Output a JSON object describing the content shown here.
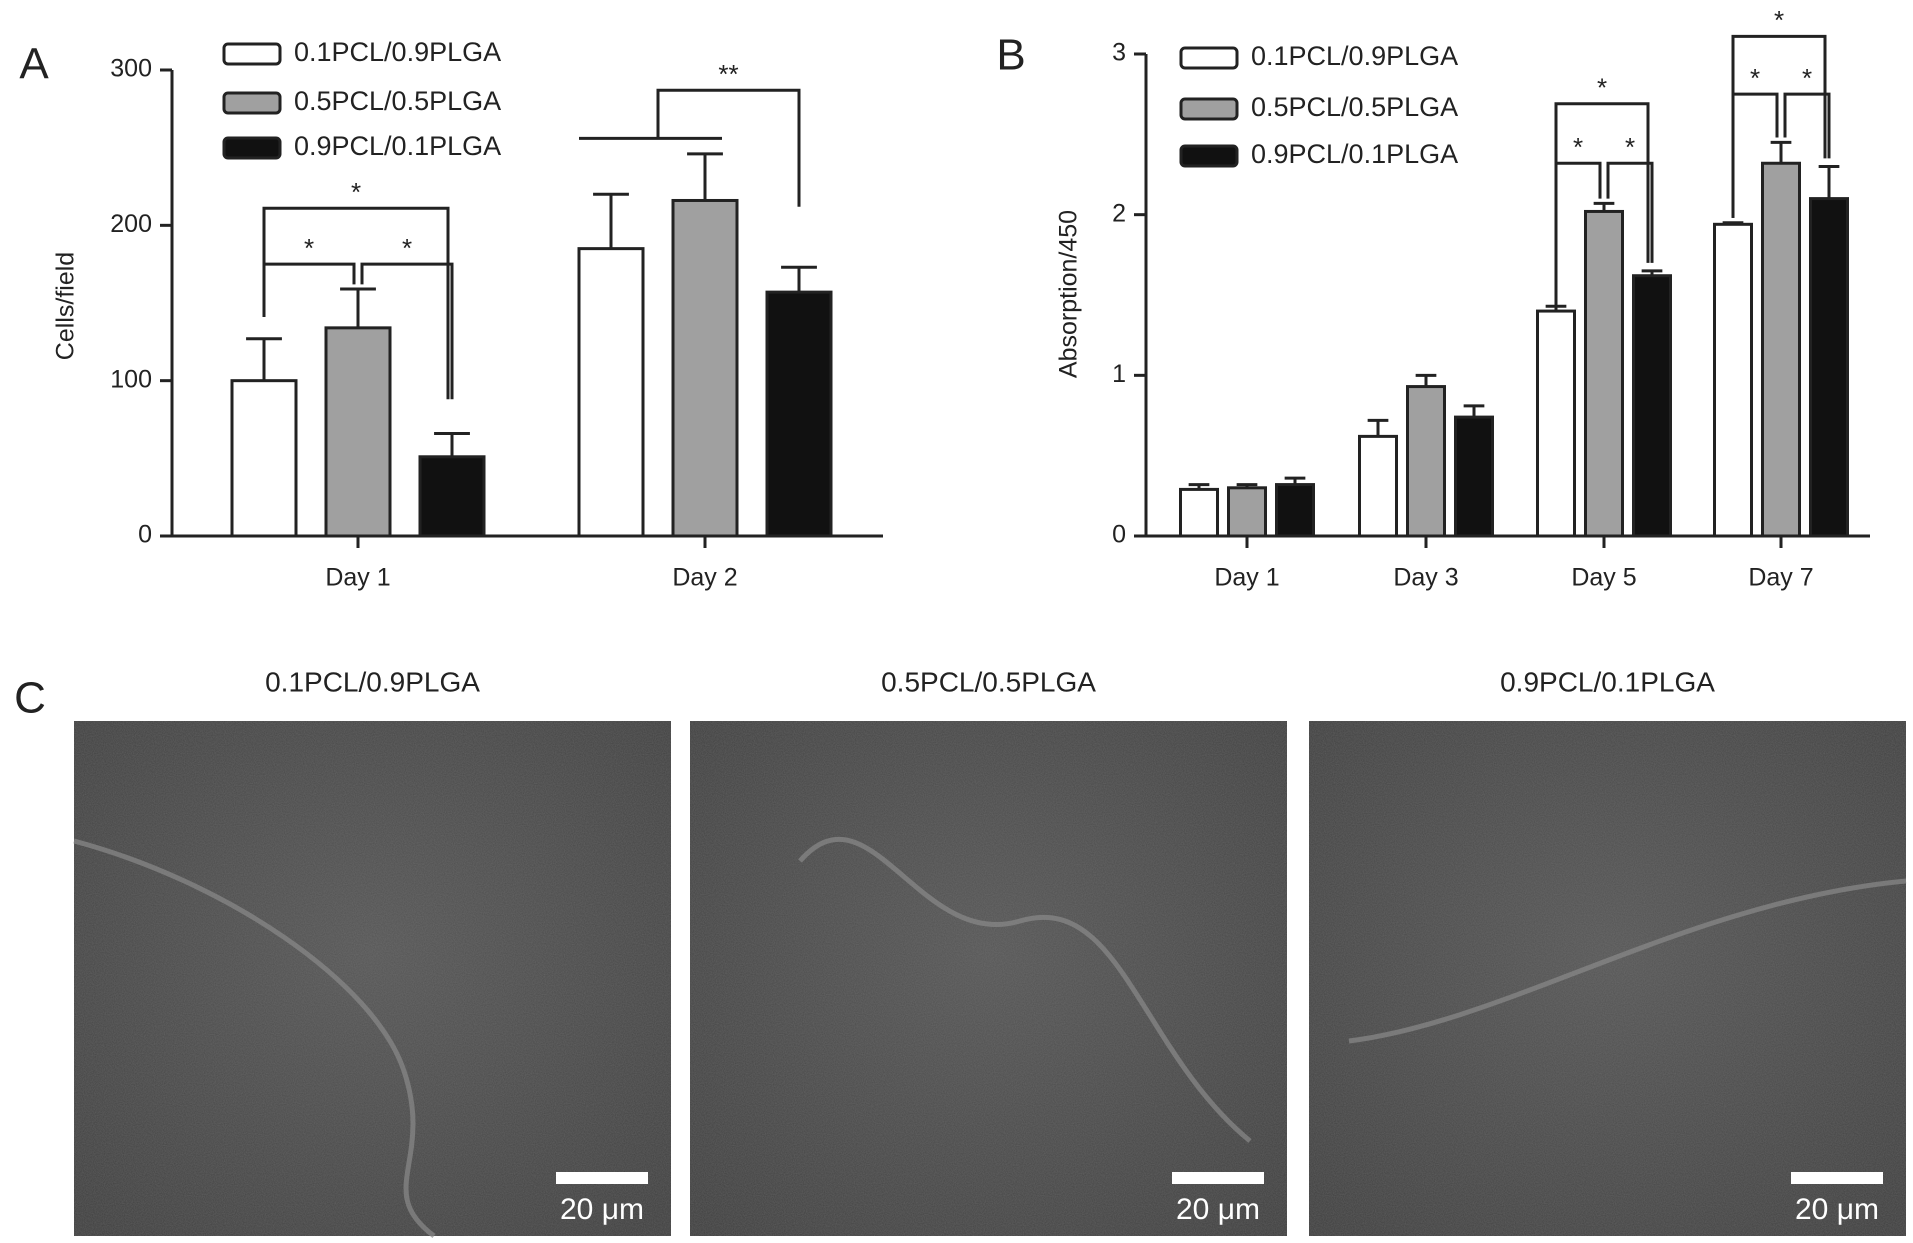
{
  "charts": [
    {
      "panel": "A",
      "type": "bar",
      "ylabel": "Cells/field",
      "categories": [
        "Day 1",
        "Day 2"
      ],
      "series": [
        {
          "name": "0.1PCL/0.9PLGA",
          "color": "#ffffff",
          "values": [
            100,
            185
          ],
          "errors": [
            27,
            35
          ]
        },
        {
          "name": "0.5PCL/0.5PLGA",
          "color": "#a0a0a0",
          "values": [
            134,
            216
          ],
          "errors": [
            25,
            30
          ]
        },
        {
          "name": "0.9PCL/0.1PLGA",
          "color": "#111111",
          "values": [
            51,
            157
          ],
          "errors": [
            15,
            16
          ]
        }
      ],
      "ylim": [
        0,
        300
      ],
      "yticks": [
        0,
        100,
        200,
        300
      ],
      "annotations": [
        "*",
        "*",
        "*",
        "**"
      ]
    },
    {
      "panel": "B",
      "type": "bar",
      "ylabel": "Absorption/450",
      "categories": [
        "Day 1",
        "Day 3",
        "Day 5",
        "Day 7"
      ],
      "series": [
        {
          "name": "0.1PCL/0.9PLGA",
          "color": "#ffffff",
          "values": [
            0.29,
            0.62,
            1.4,
            1.94
          ],
          "errors": [
            0.03,
            0.1,
            0.03,
            0.01
          ]
        },
        {
          "name": "0.5PCL/0.5PLGA",
          "color": "#a0a0a0",
          "values": [
            0.3,
            0.93,
            2.02,
            2.32
          ],
          "errors": [
            0.02,
            0.07,
            0.05,
            0.13
          ]
        },
        {
          "name": "0.9PCL/0.1PLGA",
          "color": "#111111",
          "values": [
            0.32,
            0.74,
            1.62,
            2.1
          ],
          "errors": [
            0.04,
            0.07,
            0.03,
            0.2
          ]
        }
      ],
      "ylim": [
        0,
        3
      ],
      "yticks": [
        0,
        1,
        2,
        3
      ],
      "annotations": [
        "*",
        "*",
        "*",
        "*",
        "*",
        "*"
      ]
    }
  ],
  "micrographs": {
    "panel": "C",
    "images": [
      {
        "title": "0.1PCL/0.9PLGA",
        "scale_bar": "20 μm"
      },
      {
        "title": "0.5PCL/0.5PLGA",
        "scale_bar": "20 μm"
      },
      {
        "title": "0.9PCL/0.1PLGA",
        "scale_bar": "20 μm"
      }
    ]
  }
}
